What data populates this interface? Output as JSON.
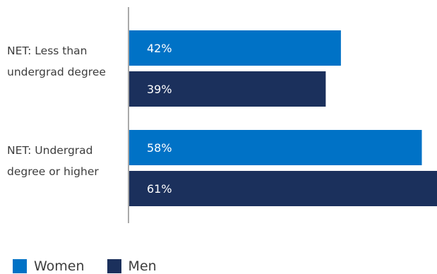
{
  "chart_data": {
    "type": "bar",
    "orientation": "horizontal",
    "categories": [
      "NET: Less than undergrad degree",
      "NET: Undergrad degree or higher"
    ],
    "category_lines": [
      [
        "NET: Less than",
        "undergrad degree"
      ],
      [
        "NET: Undergrad",
        "degree or higher"
      ]
    ],
    "series": [
      {
        "name": "Women",
        "values": [
          42,
          58
        ],
        "labels": [
          "42%",
          "58%"
        ],
        "color": "#0072c6"
      },
      {
        "name": "Men",
        "values": [
          39,
          61
        ],
        "labels": [
          "39%",
          "61%"
        ],
        "color": "#1b305c"
      }
    ],
    "xlim": [
      0,
      61
    ],
    "legend": "bottom-left",
    "grid": false
  }
}
